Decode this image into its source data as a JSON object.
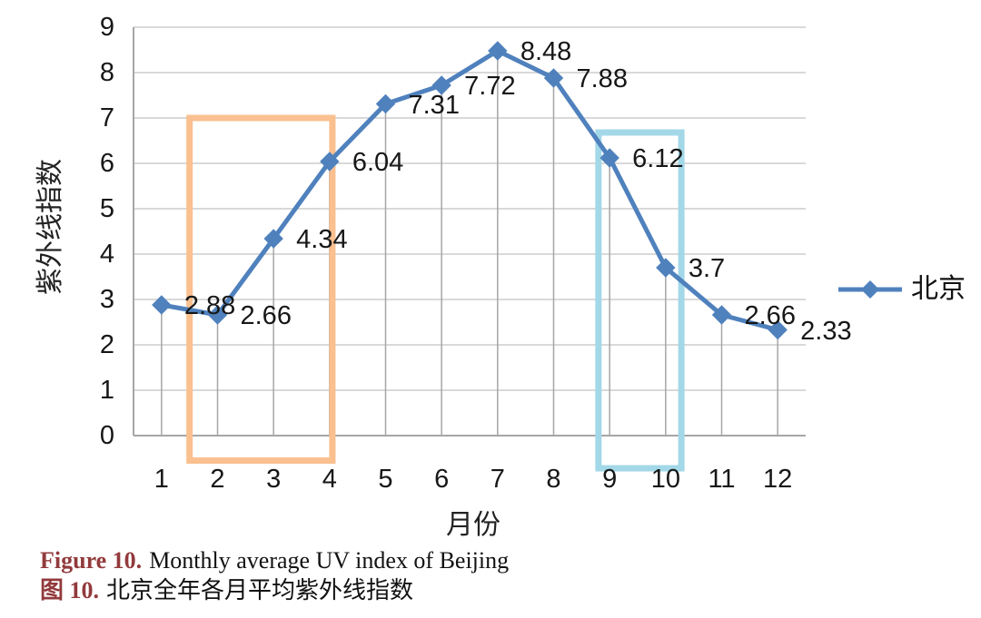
{
  "chart_data": {
    "type": "line",
    "x": [
      1,
      2,
      3,
      4,
      5,
      6,
      7,
      8,
      9,
      10,
      11,
      12
    ],
    "series": [
      {
        "name": "北京",
        "values": [
          2.88,
          2.66,
          4.34,
          6.04,
          7.31,
          7.72,
          8.48,
          7.88,
          6.12,
          3.7,
          2.66,
          2.33
        ]
      }
    ],
    "data_labels": [
      "2.88",
      "2.66",
      "4.34",
      "6.04",
      "7.31",
      "7.72",
      "8.48",
      "7.88",
      "6.12",
      "3.7",
      "2.66",
      "2.33"
    ],
    "xlabel": "月份",
    "ylabel": "紫外线指数",
    "ylim": [
      0,
      9
    ],
    "yticks": [
      0,
      1,
      2,
      3,
      4,
      5,
      6,
      7,
      8,
      9
    ],
    "grid": true,
    "legend_position": "right",
    "line_color": "#4F81BD",
    "highlights": [
      {
        "name": "highlight-months-2-4",
        "color": "#FAC090",
        "x0": 1.5,
        "x1": 4.05,
        "y0": -0.55,
        "y1": 7.0
      },
      {
        "name": "highlight-months-9-10",
        "color": "#A3D8E8",
        "x0": 8.8,
        "x1": 10.28,
        "y0": -0.72,
        "y1": 6.68
      }
    ]
  },
  "colors": {
    "gridline": "#D9D9D9",
    "axis": "#A6A6A6",
    "dropline": "#A6A6A6",
    "caption_accent": "#923A3C"
  },
  "caption": {
    "fig_label_en": "Figure 10.",
    "fig_text_en": "Monthly average UV index of Beijing",
    "fig_label_zh": "图 10.",
    "fig_text_zh": "北京全年各月平均紫外线指数"
  }
}
